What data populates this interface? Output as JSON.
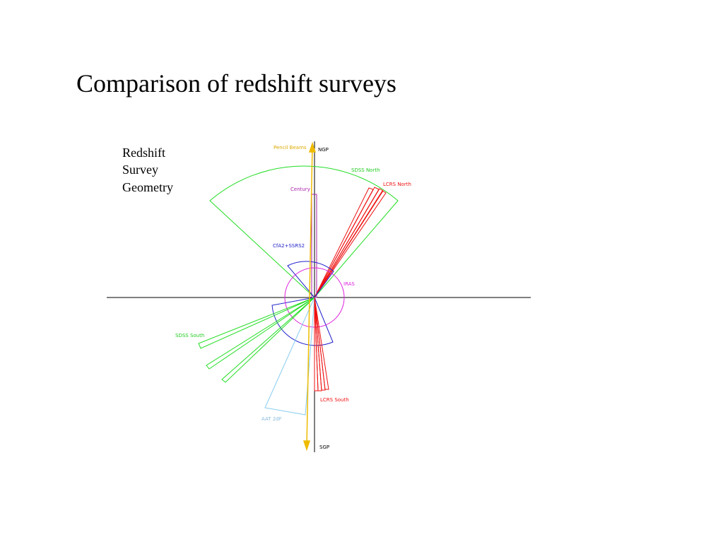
{
  "title": "Comparison of redshift surveys",
  "figure": {
    "heading": [
      "Redshift",
      "Survey",
      "Geometry"
    ],
    "labels": {
      "pencil_beams": "Pencil Beams",
      "ngp": "NGP",
      "sdss_north": "SDSS North",
      "lcrs_north": "LCRS North",
      "century": "Century",
      "cfa2": "CfA2+SSRS2",
      "iras": "IRAS",
      "sdss_south": "SDSS South",
      "lcrs_south": "LCRS South",
      "aat_2df": "AAT 2dF",
      "sgp": "SGP"
    }
  }
}
